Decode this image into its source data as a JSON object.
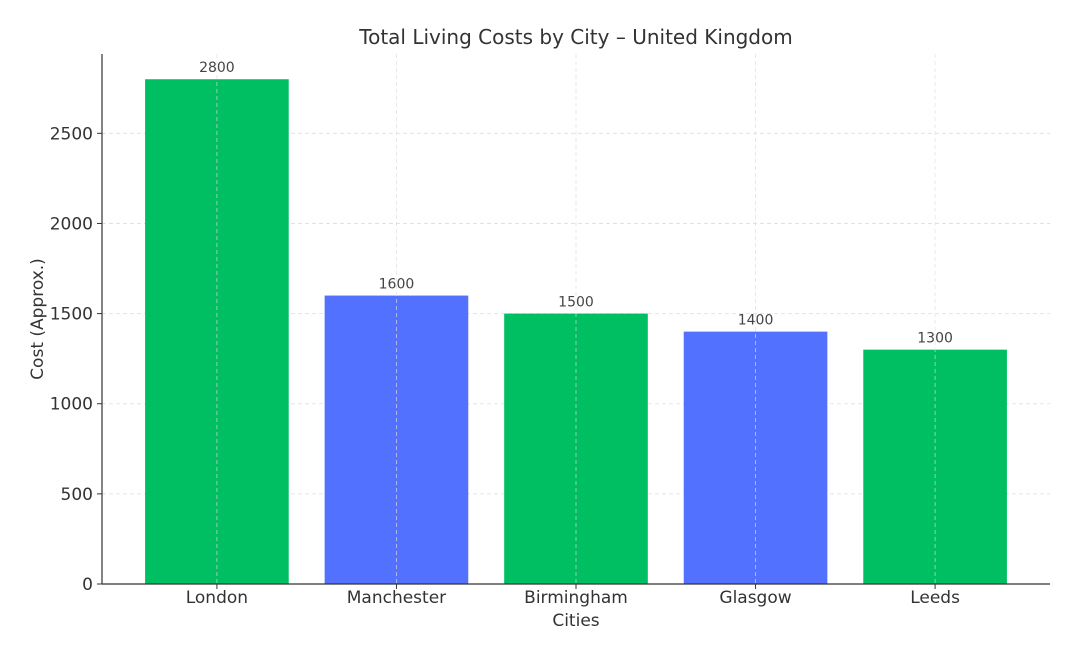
{
  "chart_data": {
    "type": "bar",
    "title": "Total Living Costs by City – United Kingdom",
    "xlabel": "Cities",
    "ylabel": "Cost (Approx.)",
    "categories": [
      "London",
      "Manchester",
      "Birmingham",
      "Glasgow",
      "Leeds"
    ],
    "values": [
      2800,
      1600,
      1500,
      1400,
      1300
    ],
    "data_labels": [
      "2800",
      "1600",
      "1500",
      "1400",
      "1300"
    ],
    "bar_colors": [
      "#00BF63",
      "#5271FF",
      "#00BF63",
      "#5271FF",
      "#00BF63"
    ],
    "ylim": [
      0,
      2940
    ],
    "yticks": [
      0,
      500,
      1000,
      1500,
      2000,
      2500
    ],
    "ytick_labels": [
      "0",
      "500",
      "1000",
      "1500",
      "2000",
      "2500"
    ],
    "grid": true,
    "legend": "none"
  }
}
